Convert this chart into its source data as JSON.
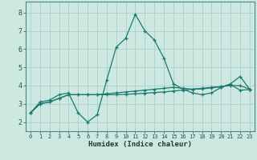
{
  "xlabel": "Humidex (Indice chaleur)",
  "xlim": [
    -0.5,
    23.5
  ],
  "ylim": [
    1.5,
    8.6
  ],
  "xticks": [
    0,
    1,
    2,
    3,
    4,
    5,
    6,
    7,
    8,
    9,
    10,
    11,
    12,
    13,
    14,
    15,
    16,
    17,
    18,
    19,
    20,
    21,
    22,
    23
  ],
  "yticks": [
    2,
    3,
    4,
    5,
    6,
    7,
    8
  ],
  "background_color": "#cce8e0",
  "grid_color": "#aacfc7",
  "line_color": "#1a7a6e",
  "line1_x": [
    0,
    1,
    2,
    3,
    4,
    5,
    6,
    7,
    8,
    9,
    10,
    11,
    12,
    13,
    14,
    15,
    16,
    17,
    18,
    19,
    20,
    21,
    22,
    23
  ],
  "line1_y": [
    2.5,
    3.1,
    3.2,
    3.5,
    3.6,
    2.5,
    2.0,
    2.4,
    4.3,
    6.1,
    6.6,
    7.9,
    7.0,
    6.5,
    5.5,
    4.1,
    3.8,
    3.6,
    3.5,
    3.6,
    3.9,
    4.1,
    4.5,
    3.8
  ],
  "line2_x": [
    0,
    1,
    2,
    3,
    4,
    5,
    6,
    7,
    8,
    9,
    10,
    11,
    12,
    13,
    14,
    15,
    16,
    17,
    18,
    19,
    20,
    21,
    22,
    23
  ],
  "line2_y": [
    2.5,
    3.0,
    3.1,
    3.3,
    3.5,
    3.5,
    3.5,
    3.5,
    3.5,
    3.5,
    3.52,
    3.55,
    3.58,
    3.62,
    3.65,
    3.7,
    3.75,
    3.8,
    3.85,
    3.9,
    3.95,
    4.0,
    4.0,
    3.8
  ],
  "line3_x": [
    0,
    1,
    2,
    3,
    4,
    5,
    6,
    7,
    8,
    9,
    10,
    11,
    12,
    13,
    14,
    15,
    16,
    17,
    18,
    19,
    20,
    21,
    22,
    23
  ],
  "line3_y": [
    2.5,
    3.0,
    3.1,
    3.3,
    3.5,
    3.5,
    3.5,
    3.5,
    3.55,
    3.6,
    3.65,
    3.7,
    3.75,
    3.8,
    3.85,
    3.9,
    3.85,
    3.8,
    3.82,
    3.88,
    3.93,
    4.05,
    3.75,
    3.78
  ]
}
